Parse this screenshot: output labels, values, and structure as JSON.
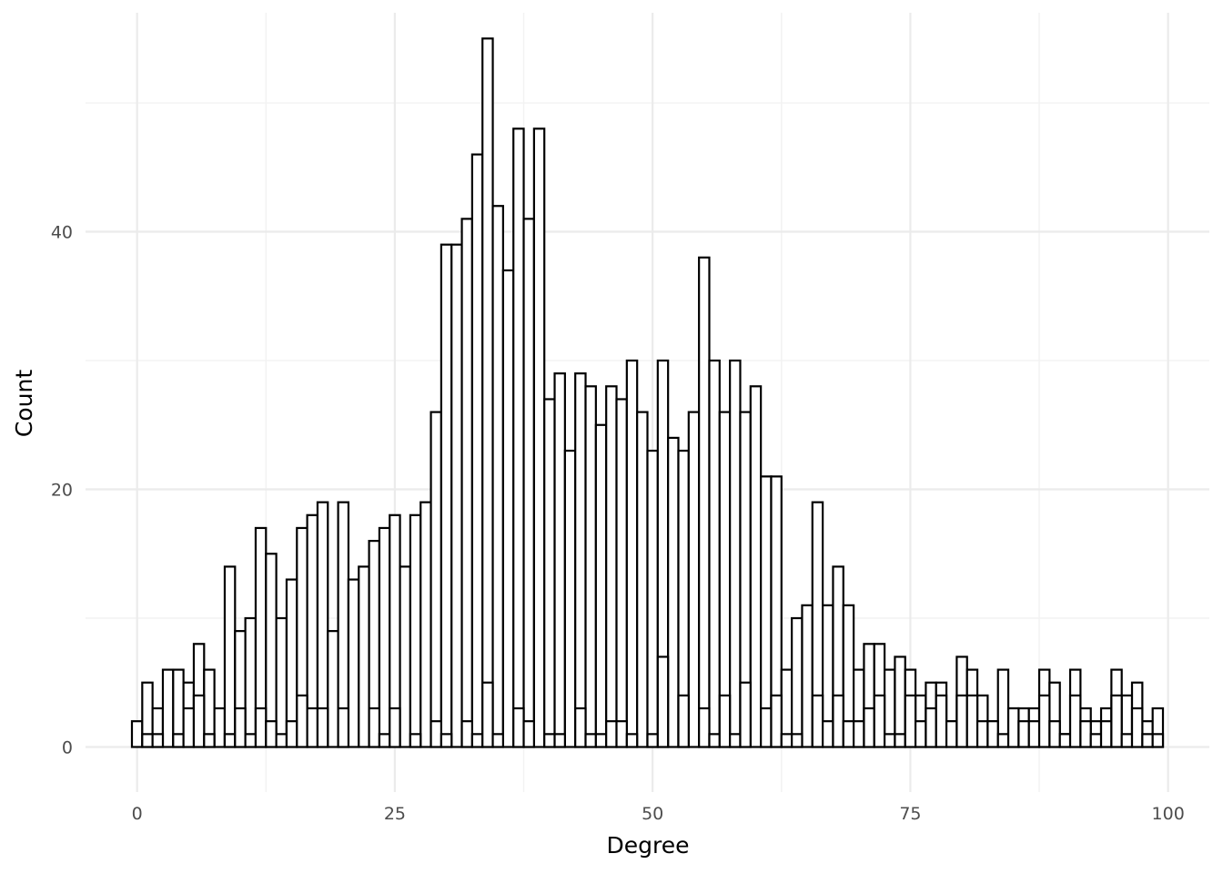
{
  "chart_data": {
    "type": "bar",
    "title": "",
    "xlabel": "Degree",
    "ylabel": "Count",
    "xlim": [
      -5,
      104
    ],
    "ylim": [
      -3.5,
      57
    ],
    "x_ticks": [
      0,
      25,
      50,
      75,
      100
    ],
    "y_ticks": [
      0,
      20,
      40
    ],
    "grid": true,
    "legend": "none",
    "bin_width": 1,
    "series": [
      {
        "layer": "back",
        "x": [
          0,
          1,
          2,
          3,
          4,
          5,
          6,
          7,
          8,
          9,
          10,
          11,
          12,
          13,
          14,
          15,
          16,
          17,
          18,
          19,
          20,
          21,
          22,
          23,
          24,
          25,
          26,
          27,
          28,
          29,
          30,
          31,
          32,
          33,
          34,
          35,
          36,
          37,
          38,
          39,
          40,
          41,
          42,
          43,
          44,
          45,
          46,
          47,
          48,
          49,
          50,
          51,
          52,
          53,
          54,
          55,
          56,
          57,
          58,
          59,
          60,
          61,
          62,
          63,
          64,
          65,
          66,
          67,
          68,
          69,
          70,
          71,
          72,
          73,
          74,
          75,
          76,
          77,
          78,
          79,
          80,
          81,
          82,
          83,
          84,
          85,
          86,
          87,
          88,
          89,
          90,
          91,
          92,
          93,
          94,
          95,
          96,
          97,
          98,
          99
        ],
        "values": [
          2,
          5,
          3,
          6,
          6,
          5,
          8,
          6,
          3,
          14,
          9,
          10,
          17,
          15,
          10,
          13,
          17,
          18,
          19,
          9,
          19,
          13,
          14,
          16,
          17,
          18,
          14,
          18,
          19,
          26,
          39,
          39,
          41,
          46,
          55,
          42,
          37,
          48,
          41,
          48,
          27,
          29,
          23,
          29,
          28,
          25,
          28,
          27,
          30,
          26,
          23,
          30,
          24,
          23,
          26,
          38,
          30,
          26,
          30,
          26,
          28,
          21,
          21,
          6,
          10,
          11,
          19,
          11,
          14,
          11,
          6,
          8,
          8,
          6,
          7,
          6,
          4,
          5,
          5,
          2,
          7,
          6,
          4,
          2,
          6,
          3,
          3,
          3,
          6,
          5,
          1,
          6,
          3,
          2,
          3,
          6,
          4,
          5,
          2,
          3
        ]
      },
      {
        "layer": "front",
        "x": [
          0,
          1,
          2,
          3,
          4,
          5,
          6,
          7,
          8,
          9,
          10,
          11,
          12,
          13,
          14,
          15,
          16,
          17,
          18,
          19,
          20,
          21,
          22,
          23,
          24,
          25,
          26,
          27,
          28,
          29,
          30,
          31,
          32,
          33,
          34,
          35,
          36,
          37,
          38,
          39,
          40,
          41,
          42,
          43,
          44,
          45,
          46,
          47,
          48,
          49,
          50,
          51,
          52,
          53,
          54,
          55,
          56,
          57,
          58,
          59,
          60,
          61,
          62,
          63,
          64,
          65,
          66,
          67,
          68,
          69,
          70,
          71,
          72,
          73,
          74,
          75,
          76,
          77,
          78,
          79,
          80,
          81,
          82,
          83,
          84,
          85,
          86,
          87,
          88,
          89,
          90,
          91,
          92,
          93,
          94,
          95,
          96,
          97,
          98,
          99
        ],
        "values": [
          0,
          1,
          1,
          0,
          1,
          3,
          4,
          1,
          0,
          1,
          3,
          1,
          3,
          2,
          1,
          2,
          4,
          3,
          3,
          0,
          3,
          0,
          0,
          3,
          1,
          3,
          0,
          1,
          0,
          2,
          1,
          0,
          2,
          1,
          5,
          1,
          0,
          3,
          2,
          0,
          1,
          1,
          0,
          3,
          1,
          1,
          2,
          2,
          1,
          0,
          1,
          7,
          0,
          4,
          0,
          3,
          1,
          4,
          1,
          5,
          0,
          3,
          4,
          1,
          1,
          0,
          4,
          2,
          4,
          2,
          2,
          3,
          4,
          1,
          1,
          4,
          2,
          3,
          4,
          2,
          4,
          4,
          2,
          2,
          1,
          3,
          2,
          2,
          4,
          2,
          1,
          4,
          2,
          1,
          2,
          4,
          1,
          3,
          1,
          1
        ]
      }
    ]
  }
}
